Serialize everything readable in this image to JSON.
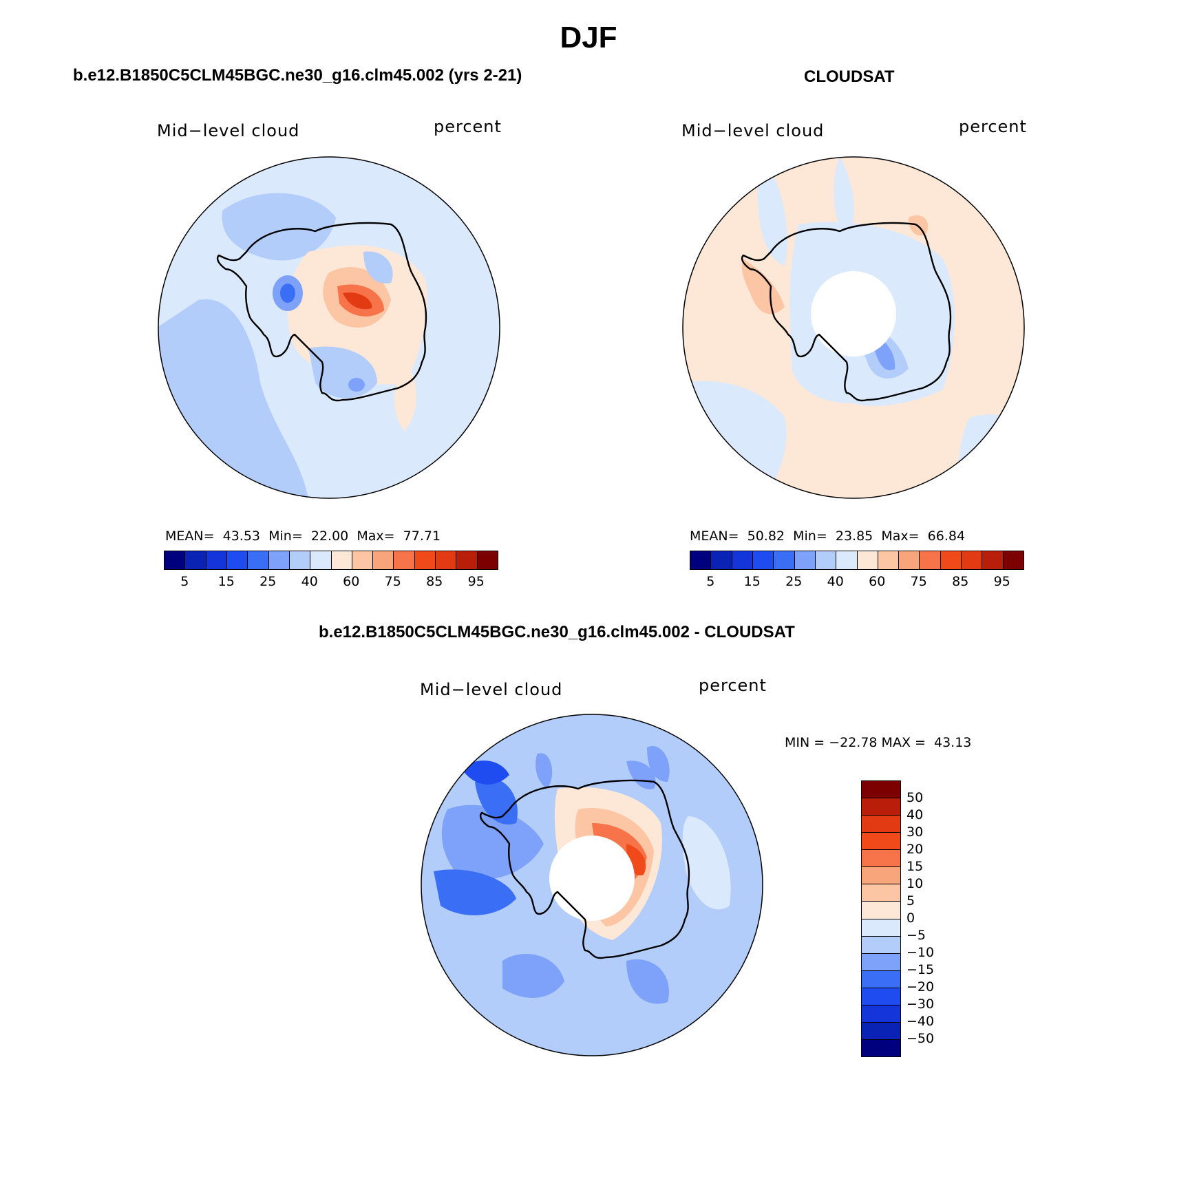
{
  "figure_title": "DJF",
  "panels": {
    "model": {
      "title": "b.e12.B1850C5CLM45BGC.ne30_g16.clm45.002 (yrs 2-21)",
      "variable": "Mid−level cloud",
      "units": "percent",
      "mean_label": "MEAN=",
      "mean": "43.53",
      "min_label": "Min=",
      "min": "22.00",
      "max_label": "Max=",
      "max": "77.71"
    },
    "obs": {
      "title": "CLOUDSAT",
      "variable": "Mid−level cloud",
      "units": "percent",
      "mean_label": "MEAN=",
      "mean": "50.82",
      "min_label": "Min=",
      "min": "23.85",
      "max_label": "Max=",
      "max": "66.84"
    },
    "diff": {
      "title": "b.e12.B1850C5CLM45BGC.ne30_g16.clm45.002 - CLOUDSAT",
      "variable": "Mid−level cloud",
      "units": "percent",
      "minmax_text": "MIN = −22.78 MAX =  43.13"
    }
  },
  "colorbars": {
    "absolute": {
      "colors": [
        "#00007f",
        "#0a23b4",
        "#1435d9",
        "#1e4cf0",
        "#3a6ef5",
        "#7ea2f9",
        "#b3cdfb",
        "#dbe9fd",
        "#fde8d8",
        "#fcc5a4",
        "#f9a57c",
        "#f7744a",
        "#f04a1a",
        "#e23a12",
        "#b81e0a",
        "#7c0000"
      ],
      "tick_labels": [
        "5",
        "15",
        "25",
        "40",
        "60",
        "75",
        "85",
        "95"
      ]
    },
    "difference": {
      "colors": [
        "#7c0000",
        "#b81e0a",
        "#e23a12",
        "#f04a1a",
        "#f7744a",
        "#f9a57c",
        "#fcc5a4",
        "#fde8d8",
        "#dbe9fd",
        "#b3cdfb",
        "#7ea2f9",
        "#3a6ef5",
        "#1e4cf0",
        "#1435d9",
        "#0a23b4",
        "#00007f"
      ],
      "tick_labels": [
        "50",
        "40",
        "30",
        "20",
        "15",
        "10",
        "5",
        "0",
        "−5",
        "−10",
        "−15",
        "−20",
        "−30",
        "−40",
        "−50"
      ]
    }
  },
  "map_colors": {
    "ocean_model": "#dbe9fd",
    "ocean_obs": "#fde8d8",
    "ocean_diff": "#b3cdfb",
    "coast": "#000000"
  }
}
